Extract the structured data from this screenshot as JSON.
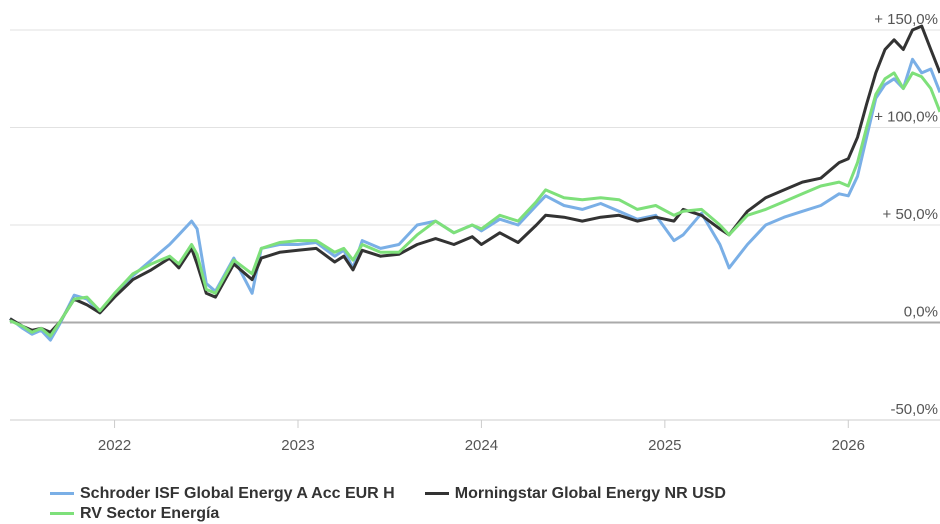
{
  "chart_data": {
    "type": "line",
    "x": [
      2021.43,
      2021.5,
      2021.55,
      2021.6,
      2021.65,
      2021.7,
      2021.78,
      2021.85,
      2021.92,
      2022.0,
      2022.1,
      2022.2,
      2022.3,
      2022.35,
      2022.42,
      2022.45,
      2022.5,
      2022.55,
      2022.65,
      2022.75,
      2022.8,
      2022.9,
      2023.0,
      2023.1,
      2023.2,
      2023.25,
      2023.3,
      2023.35,
      2023.45,
      2023.55,
      2023.65,
      2023.75,
      2023.85,
      2023.95,
      2024.0,
      2024.1,
      2024.2,
      2024.3,
      2024.35,
      2024.45,
      2024.55,
      2024.65,
      2024.75,
      2024.85,
      2024.95,
      2025.05,
      2025.1,
      2025.2,
      2025.3,
      2025.35,
      2025.45,
      2025.55,
      2025.65,
      2025.75,
      2025.85,
      2025.95,
      2026.0,
      2026.05,
      2026.1,
      2026.15,
      2026.2,
      2026.25,
      2026.3,
      2026.35,
      2026.4,
      2026.45,
      2026.5
    ],
    "series": [
      {
        "name": "Schroder ISF Global Energy A Acc EUR H",
        "color": "#7aafe6",
        "values": [
          2,
          -3,
          -6,
          -4,
          -9,
          -1,
          14,
          12,
          5,
          14,
          24,
          32,
          40,
          45,
          52,
          48,
          20,
          16,
          33,
          15,
          38,
          40,
          40,
          41,
          34,
          37,
          28,
          42,
          38,
          40,
          50,
          52,
          46,
          50,
          47,
          53,
          50,
          60,
          65,
          60,
          58,
          61,
          57,
          53,
          55,
          42,
          45,
          56,
          40,
          28,
          40,
          50,
          54,
          57,
          60,
          66,
          65,
          75,
          95,
          115,
          122,
          125,
          120,
          135,
          128,
          130,
          118
        ]
      },
      {
        "name": "Morningstar Global Energy NR USD",
        "color": "#333333",
        "values": [
          2,
          -2,
          -4,
          -3,
          -5,
          0,
          12,
          9,
          5,
          13,
          22,
          27,
          33,
          28,
          38,
          30,
          15,
          13,
          30,
          22,
          33,
          36,
          37,
          38,
          31,
          34,
          27,
          37,
          34,
          35,
          40,
          43,
          40,
          44,
          40,
          46,
          41,
          50,
          55,
          54,
          52,
          54,
          55,
          52,
          54,
          52,
          58,
          55,
          48,
          45,
          57,
          64,
          68,
          72,
          74,
          82,
          84,
          95,
          112,
          128,
          140,
          145,
          140,
          150,
          152,
          140,
          128
        ]
      },
      {
        "name": "RV Sector Energía",
        "color": "#7ee07a",
        "values": [
          1,
          -2,
          -5,
          -3,
          -7,
          0,
          12,
          13,
          6,
          15,
          25,
          30,
          34,
          30,
          40,
          35,
          17,
          15,
          32,
          25,
          38,
          41,
          42,
          42,
          36,
          38,
          32,
          40,
          36,
          36,
          45,
          52,
          46,
          50,
          48,
          55,
          52,
          62,
          68,
          64,
          63,
          64,
          63,
          58,
          60,
          55,
          57,
          58,
          50,
          45,
          55,
          58,
          62,
          66,
          70,
          72,
          70,
          82,
          100,
          117,
          125,
          128,
          120,
          128,
          126,
          120,
          108
        ]
      }
    ],
    "xlim": [
      2021.43,
      2026.5
    ],
    "xticks": [
      2022,
      2023,
      2024,
      2025,
      2026
    ],
    "ylim": [
      -50,
      150
    ],
    "yticks": [
      {
        "value": -50,
        "label": "-50,0%"
      },
      {
        "value": 0,
        "label": "0,0%"
      },
      {
        "value": 50,
        "label": "+ 50,0%"
      },
      {
        "value": 100,
        "label": "+ 100,0%"
      },
      {
        "value": 150,
        "label": "+ 150,0%"
      }
    ],
    "grid": true
  }
}
